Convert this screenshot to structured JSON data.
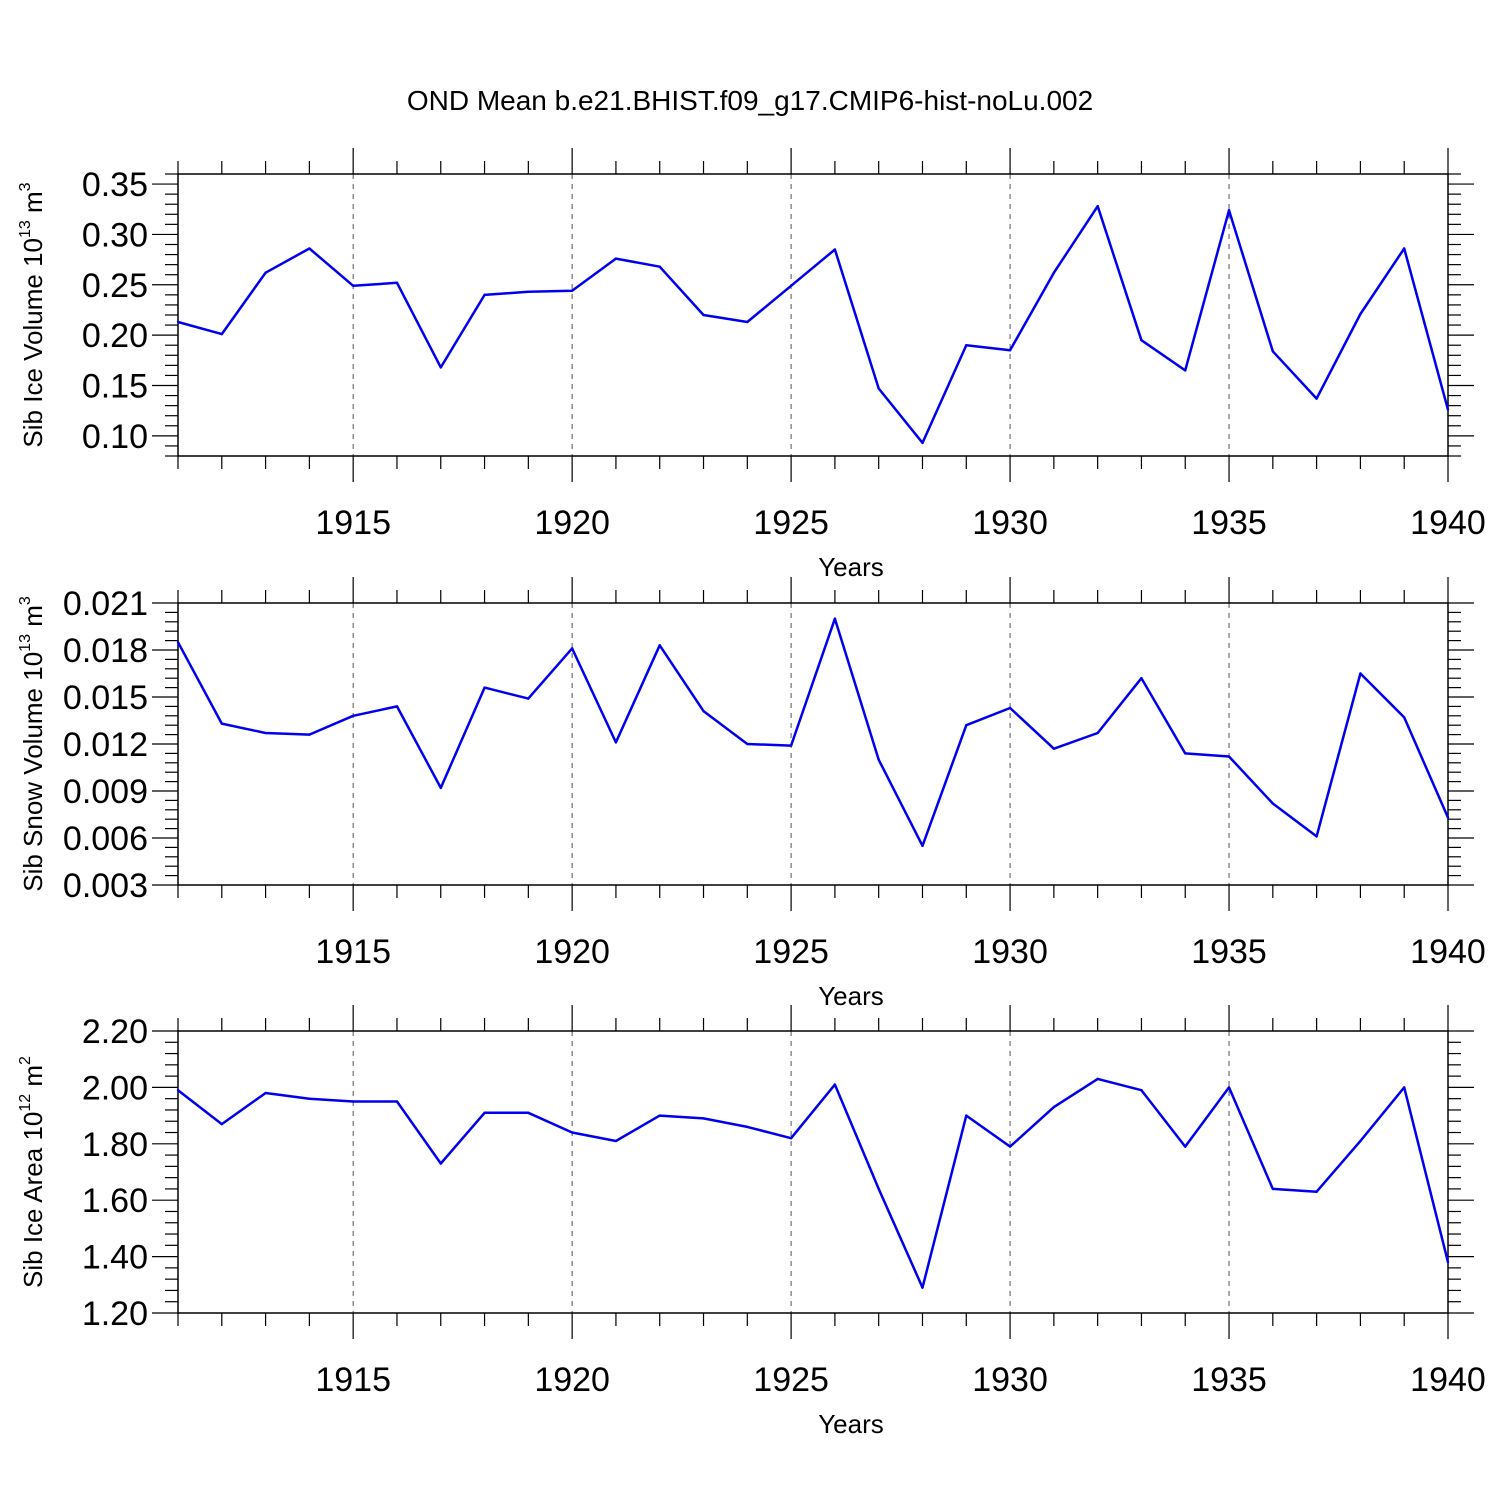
{
  "title": "OND Mean b.e21.BHIST.f09_g17.CMIP6-hist-noLu.002",
  "chart_data": [
    {
      "type": "line",
      "ylabel": "Sib Ice Volume 10",
      "ylabel_exp": "13",
      "ylabel_unit": "m",
      "ylabel_unit_exp": "3",
      "xlabel": "Years",
      "xlim": [
        1911,
        1940
      ],
      "ylim": [
        0.08,
        0.36
      ],
      "yticks": [
        0.1,
        0.15,
        0.2,
        0.25,
        0.3,
        0.35
      ],
      "ytick_labels": [
        "0.10",
        "0.15",
        "0.20",
        "0.25",
        "0.30",
        "0.35"
      ],
      "xticks": [
        1915,
        1920,
        1925,
        1930,
        1935,
        1940
      ],
      "xtick_labels": [
        "1915",
        "1920",
        "1925",
        "1930",
        "1935",
        "1940"
      ],
      "grid": "vertical dashed at major x ticks",
      "color": "#0000ee",
      "x": [
        1911,
        1912,
        1913,
        1914,
        1915,
        1916,
        1917,
        1918,
        1919,
        1920,
        1921,
        1922,
        1923,
        1924,
        1925,
        1926,
        1927,
        1928,
        1929,
        1930,
        1931,
        1932,
        1933,
        1934,
        1935,
        1936,
        1937,
        1938,
        1939,
        1940
      ],
      "y": [
        0.213,
        0.201,
        0.262,
        0.286,
        0.249,
        0.252,
        0.168,
        0.24,
        0.243,
        0.244,
        0.276,
        0.268,
        0.22,
        0.213,
        0.249,
        0.285,
        0.147,
        0.093,
        0.19,
        0.185,
        0.262,
        0.328,
        0.195,
        0.165,
        0.324,
        0.184,
        0.137,
        0.221,
        0.286,
        0.126
      ]
    },
    {
      "type": "line",
      "ylabel": "Sib Snow Volume 10",
      "ylabel_exp": "13",
      "ylabel_unit": "m",
      "ylabel_unit_exp": "3",
      "xlabel": "Years",
      "xlim": [
        1911,
        1940
      ],
      "ylim": [
        0.003,
        0.021
      ],
      "yticks": [
        0.003,
        0.006,
        0.009,
        0.012,
        0.015,
        0.018,
        0.021
      ],
      "ytick_labels": [
        "0.003",
        "0.006",
        "0.009",
        "0.012",
        "0.015",
        "0.018",
        "0.021"
      ],
      "xticks": [
        1915,
        1920,
        1925,
        1930,
        1935,
        1940
      ],
      "xtick_labels": [
        "1915",
        "1920",
        "1925",
        "1930",
        "1935",
        "1940"
      ],
      "grid": "vertical dashed at major x ticks",
      "color": "#0000ee",
      "x": [
        1911,
        1912,
        1913,
        1914,
        1915,
        1916,
        1917,
        1918,
        1919,
        1920,
        1921,
        1922,
        1923,
        1924,
        1925,
        1926,
        1927,
        1928,
        1929,
        1930,
        1931,
        1932,
        1933,
        1934,
        1935,
        1936,
        1937,
        1938,
        1939,
        1940
      ],
      "y": [
        0.0185,
        0.0133,
        0.0127,
        0.0126,
        0.0138,
        0.0144,
        0.0092,
        0.0156,
        0.0149,
        0.0181,
        0.0121,
        0.0183,
        0.0141,
        0.012,
        0.0119,
        0.02,
        0.011,
        0.0055,
        0.0132,
        0.0143,
        0.0117,
        0.0127,
        0.0162,
        0.0114,
        0.0112,
        0.0082,
        0.0061,
        0.0165,
        0.0137,
        0.0073
      ]
    },
    {
      "type": "line",
      "ylabel": "Sib Ice Area 10",
      "ylabel_exp": "12",
      "ylabel_unit": "m",
      "ylabel_unit_exp": "2",
      "xlabel": "Years",
      "xlim": [
        1911,
        1940
      ],
      "ylim": [
        1.2,
        2.2
      ],
      "yticks": [
        1.2,
        1.4,
        1.6,
        1.8,
        2.0,
        2.2
      ],
      "ytick_labels": [
        "1.20",
        "1.40",
        "1.60",
        "1.80",
        "2.00",
        "2.20"
      ],
      "xticks": [
        1915,
        1920,
        1925,
        1930,
        1935,
        1940
      ],
      "xtick_labels": [
        "1915",
        "1920",
        "1925",
        "1930",
        "1935",
        "1940"
      ],
      "grid": "vertical dashed at major x ticks",
      "color": "#0000ee",
      "x": [
        1911,
        1912,
        1913,
        1914,
        1915,
        1916,
        1917,
        1918,
        1919,
        1920,
        1921,
        1922,
        1923,
        1924,
        1925,
        1926,
        1927,
        1928,
        1929,
        1930,
        1931,
        1932,
        1933,
        1934,
        1935,
        1936,
        1937,
        1938,
        1939,
        1940
      ],
      "y": [
        1.99,
        1.87,
        1.98,
        1.96,
        1.95,
        1.95,
        1.73,
        1.91,
        1.91,
        1.84,
        1.81,
        1.9,
        1.89,
        1.86,
        1.82,
        2.01,
        1.64,
        1.29,
        1.9,
        1.79,
        1.93,
        2.03,
        1.99,
        1.79,
        2.0,
        1.64,
        1.63,
        1.81,
        2.0,
        1.38
      ]
    }
  ]
}
